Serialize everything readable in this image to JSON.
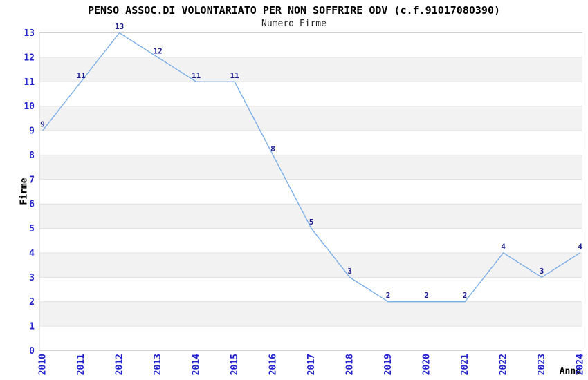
{
  "chart_data": {
    "type": "line",
    "title": "PENSO ASSOC.DI VOLONTARIATO PER NON SOFFRIRE ODV (c.f.91017080390)",
    "subtitle": "Numero Firme",
    "xlabel": "Anno",
    "ylabel": "Firme",
    "categories": [
      "2010",
      "2011",
      "2012",
      "2013",
      "2014",
      "2015",
      "2016",
      "2017",
      "2018",
      "2019",
      "2020",
      "2021",
      "2022",
      "2023",
      "2024"
    ],
    "values": [
      9,
      11,
      13,
      12,
      11,
      11,
      8,
      5,
      3,
      2,
      2,
      2,
      4,
      3,
      4
    ],
    "ylim": [
      0,
      13
    ],
    "yticks": [
      0,
      1,
      2,
      3,
      4,
      5,
      6,
      7,
      8,
      9,
      10,
      11,
      12,
      13
    ],
    "grid": true,
    "legend": false,
    "colors": {
      "line": "#7caee6",
      "data_label": "#1a1a8c",
      "tick_label": "#2323cd",
      "band": "#f2f2f2",
      "gridline": "#e0e0e0",
      "plot_border": "#d0d0d0",
      "background": "#ffffff"
    }
  }
}
